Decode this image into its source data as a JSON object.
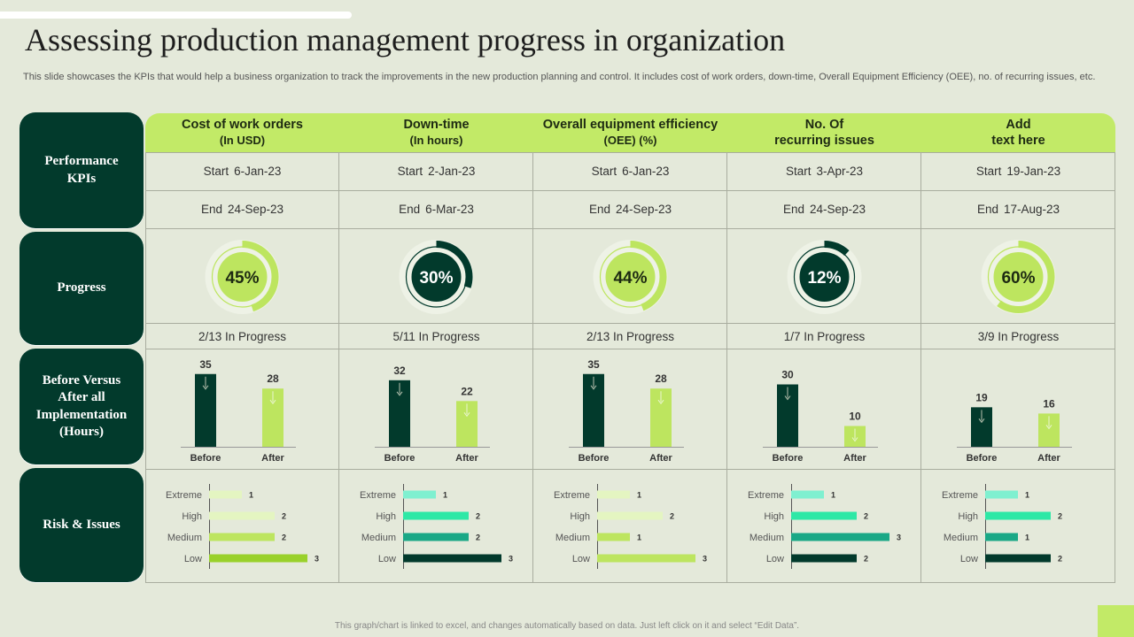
{
  "title": "Assessing production management progress in organization",
  "subtitle": "This slide showcases the KPIs that would help a business organization to track the improvements in the new production planning and control. It includes cost of work orders, down-time, Overall Equipment Efficiency (OEE), no. of recurring issues, etc.",
  "row_labels": {
    "kpis": "Performance KPIs",
    "progress": "Progress",
    "before_after": "Before Versus After all Implementation (Hours)",
    "risk": "Risk & Issues"
  },
  "labels": {
    "start": "Start",
    "end": "End",
    "before": "Before",
    "after": "After"
  },
  "risk_levels": [
    "Extreme",
    "High",
    "Medium",
    "Low"
  ],
  "columns": [
    {
      "title": "Cost of work orders",
      "subtitle": "(In USD)",
      "start": "6-Jan-23",
      "end": "24-Sep-23",
      "progress_label": "45%",
      "progress_value": 45,
      "status": "2/13 In Progress"
    },
    {
      "title": "Down-time",
      "subtitle": "(In hours)",
      "start": "2-Jan-23",
      "end": "6-Mar-23",
      "progress_label": "30%",
      "progress_value": 30,
      "status": "5/11 In Progress"
    },
    {
      "title": "Overall equipment efficiency",
      "subtitle": "(OEE) (%)",
      "start": "6-Jan-23",
      "end": "24-Sep-23",
      "progress_label": "44%",
      "progress_value": 44,
      "status": "2/13 In Progress"
    },
    {
      "title": "No. Of",
      "subtitle": "recurring issues",
      "start": "3-Apr-23",
      "end": "24-Sep-23",
      "progress_label": "12%",
      "progress_value": 12,
      "status": "1/7 In Progress"
    },
    {
      "title": "Add",
      "subtitle": "text here",
      "start": "19-Jan-23",
      "end": "17-Aug-23",
      "progress_label": "60%",
      "progress_value": 60,
      "status": "3/9 In Progress"
    }
  ],
  "colors": {
    "dark_green": "#023a2c",
    "lime": "#c2ea67",
    "light_lime": "#e4f5c1",
    "mid_lime": "#bde55f",
    "bright_lime": "#99d12b",
    "mint": "#7ff0d0",
    "teal": "#2ee8a6",
    "teal_dark": "#1aa886"
  },
  "chart_data": [
    {
      "type": "bar",
      "categories": [
        "Before",
        "After"
      ],
      "charts": [
        {
          "values": [
            35,
            28
          ]
        },
        {
          "values": [
            32,
            22
          ]
        },
        {
          "values": [
            35,
            28
          ]
        },
        {
          "values": [
            30,
            10
          ]
        },
        {
          "values": [
            19,
            16
          ]
        }
      ]
    },
    {
      "type": "bar",
      "orientation": "horizontal",
      "categories": [
        "Extreme",
        "High",
        "Medium",
        "Low"
      ],
      "charts": [
        {
          "values": [
            1,
            2,
            2,
            3
          ],
          "colors": [
            "#e4f5c1",
            "#e4f5c1",
            "#bde55f",
            "#99d12b"
          ]
        },
        {
          "values": [
            1,
            2,
            2,
            3
          ],
          "colors": [
            "#7ff0d0",
            "#2ee8a6",
            "#1aa886",
            "#023a2c"
          ]
        },
        {
          "values": [
            1,
            2,
            1,
            3
          ],
          "colors": [
            "#e4f5c1",
            "#e4f5c1",
            "#bde55f",
            "#bde55f"
          ]
        },
        {
          "values": [
            1,
            2,
            3,
            2
          ],
          "colors": [
            "#7ff0d0",
            "#2ee8a6",
            "#1aa886",
            "#023a2c"
          ]
        },
        {
          "values": [
            1,
            2,
            1,
            2
          ],
          "colors": [
            "#7ff0d0",
            "#2ee8a6",
            "#1aa886",
            "#023a2c"
          ]
        }
      ]
    }
  ]
}
